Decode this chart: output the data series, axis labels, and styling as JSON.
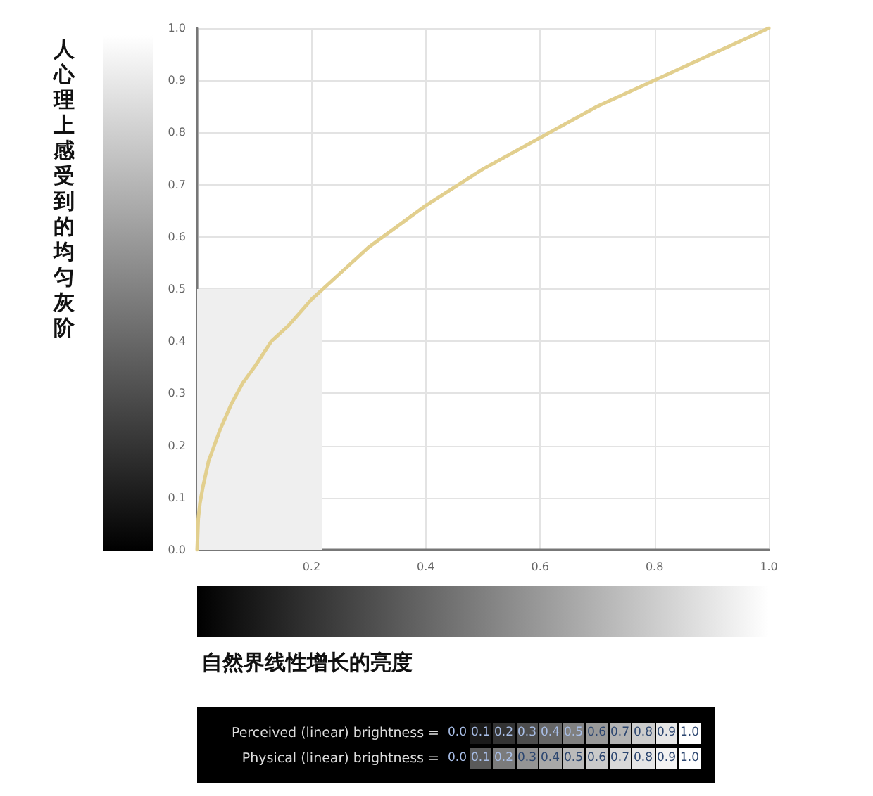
{
  "chart_data": {
    "type": "line",
    "xlabel": "自然界线性增长的亮度",
    "ylabel": "人心理上感受到的均匀灰阶",
    "xlim": [
      0,
      1
    ],
    "ylim": [
      0,
      1
    ],
    "xticks": [
      {
        "value": 0,
        "label": null
      },
      0.2,
      0.4,
      0.6,
      0.8,
      {
        "value": 1,
        "label": "1.0"
      }
    ],
    "yticks": [
      {
        "value": 0,
        "label": "0.0"
      },
      0.1,
      0.2,
      0.3,
      0.4,
      0.5,
      0.6,
      0.7,
      0.8,
      0.9,
      {
        "value": 1,
        "label": "1.0"
      }
    ],
    "grid": true,
    "marker": "none",
    "line_style": "solid",
    "series": [
      {
        "type": "area",
        "color": "#efefef",
        "x": [
          0,
          0.218
        ],
        "values": [
          0.5,
          0.5
        ]
      },
      {
        "color": "#e2cf8e",
        "x": [
          0,
          0.002,
          0.005,
          0.01,
          0.02,
          0.04,
          0.06,
          0.08,
          0.1,
          0.13,
          0.16,
          0.2,
          0.25,
          0.3,
          0.4,
          0.5,
          0.6,
          0.7,
          0.8,
          0.9,
          1
        ],
        "values": [
          0,
          0.06,
          0.09,
          0.12,
          0.17,
          0.23,
          0.28,
          0.32,
          0.35,
          0.4,
          0.43,
          0.48,
          0.53,
          0.58,
          0.66,
          0.73,
          0.79,
          0.85,
          0.9,
          0.95,
          1
        ]
      }
    ],
    "annotations": [
      "Perceived (linear) brightness =",
      "0.0",
      "0.1",
      "0.2",
      "0.3",
      "0.4",
      "0.5",
      "0.6",
      "0.7",
      "0.8",
      "0.9",
      "1.0",
      "Physical (linear) brightness =",
      "0.0",
      "0.1",
      "0.2",
      "0.3",
      "0.4",
      "0.5",
      "0.6",
      "0.7",
      "0.8",
      "0.9",
      "1.0"
    ]
  }
}
